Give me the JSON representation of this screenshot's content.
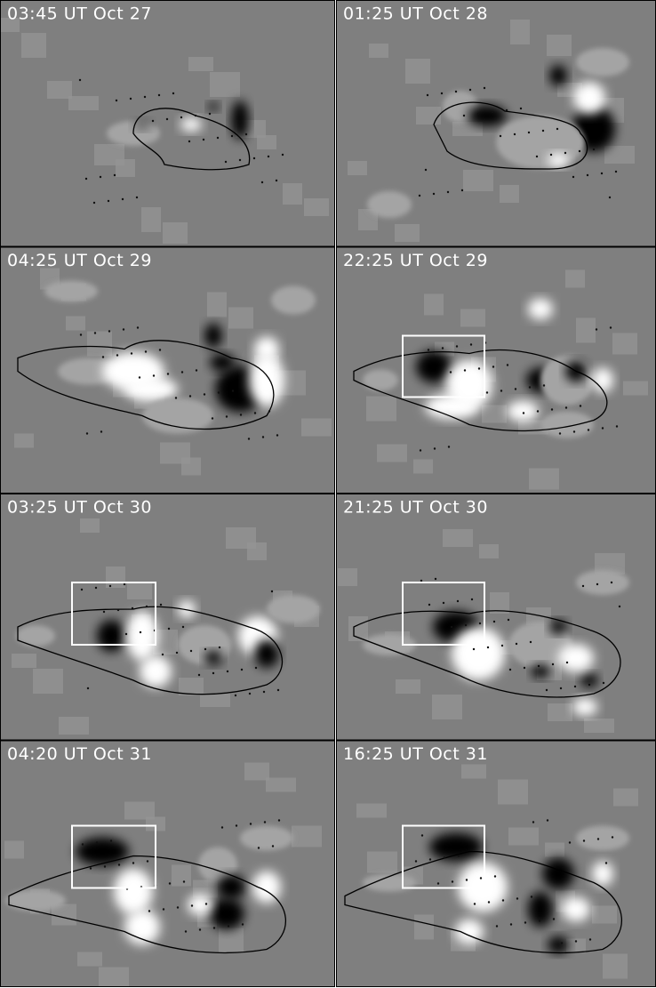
{
  "panels": [
    {
      "label": "03:45 UT Oct 27"
    },
    {
      "label": "01:25 UT Oct 28"
    },
    {
      "label": "04:25 UT Oct 29"
    },
    {
      "label": "22:25 UT Oct 29"
    },
    {
      "label": "03:25 UT Oct 30"
    },
    {
      "label": "21:25 UT Oct 30"
    },
    {
      "label": "04:20 UT Oct 31"
    },
    {
      "label": "16:25 UT Oct 31"
    }
  ]
}
